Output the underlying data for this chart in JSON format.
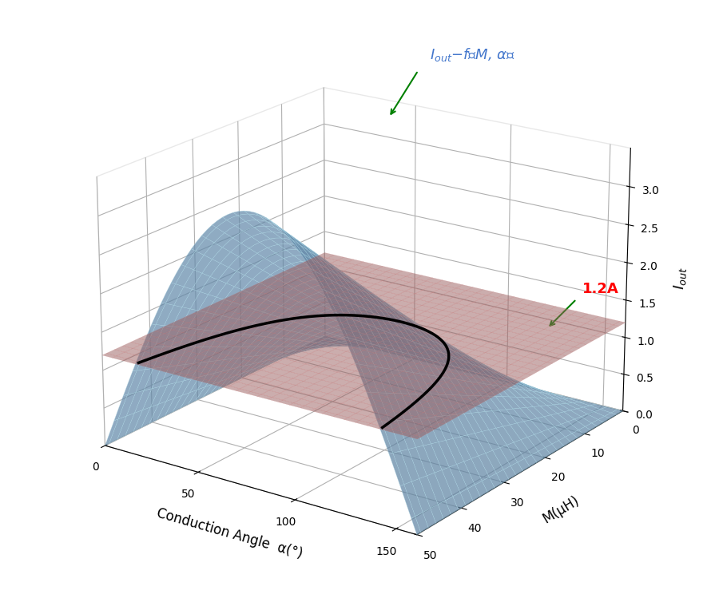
{
  "alpha_min": 0,
  "alpha_max": 160,
  "M_min": 0,
  "M_max": 50,
  "Iout_min": 0,
  "Iout_max": 3.5,
  "constant_current": 1.2,
  "alpha_ticks": [
    0,
    50,
    100,
    150
  ],
  "M_ticks": [
    0,
    10,
    20,
    30,
    40,
    50
  ],
  "Iout_ticks": [
    0,
    0.5,
    1.0,
    1.5,
    2.0,
    2.5,
    3.0
  ],
  "xlabel": "Conduction Angle  α(°)",
  "ylabel": "M(μH)",
  "zlabel": "$I_{out}$",
  "surface_color": "#7aacd6",
  "surface_alpha": 0.7,
  "plane_color": "#c87878",
  "plane_alpha": 0.5,
  "curve_color": "black",
  "curve_linewidth": 2.5,
  "annotation_surface_text": "$I_{out}$−f（M, α）",
  "annotation_surface_color": "#4477cc",
  "annotation_plane_text": "1.2A",
  "annotation_plane_color": "red",
  "arrow_color": "green",
  "figsize": [
    9.0,
    7.64
  ],
  "dpi": 100,
  "elev": 20,
  "azim": -55
}
